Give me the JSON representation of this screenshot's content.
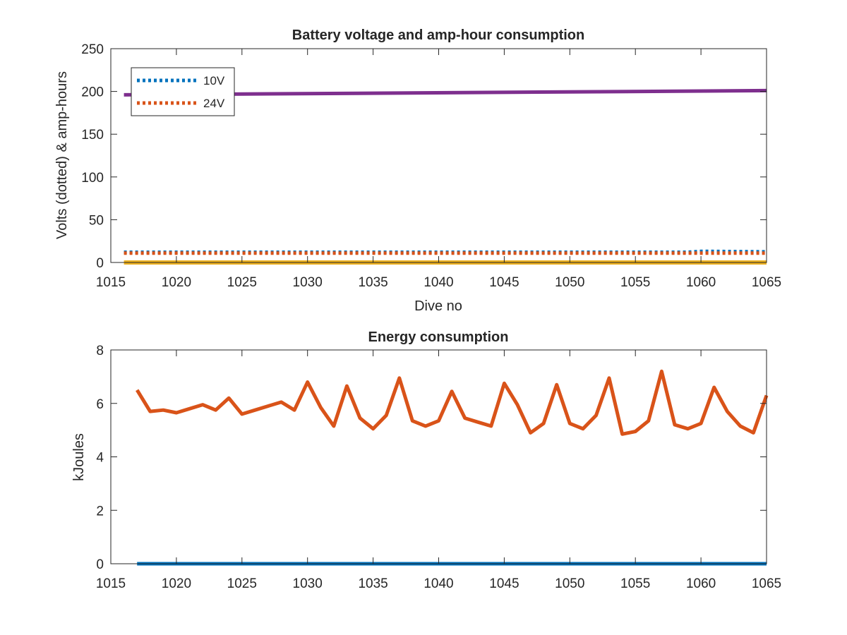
{
  "colors": {
    "blue": "#0072bd",
    "orange": "#d95319",
    "yellow": "#edb120",
    "purple": "#7e2f8e",
    "axis": "#262626"
  },
  "chart_data": [
    {
      "type": "line",
      "title": "Battery voltage and amp-hour consumption",
      "xlabel": "Dive no",
      "ylabel": "Volts (dotted) & amp-hours",
      "xlim": [
        1015,
        1065
      ],
      "ylim": [
        0,
        250
      ],
      "xticks": [
        1015,
        1020,
        1025,
        1030,
        1035,
        1040,
        1045,
        1050,
        1055,
        1060,
        1065
      ],
      "yticks": [
        0,
        50,
        100,
        150,
        200,
        250
      ],
      "grid": false,
      "legend_position": "top-left",
      "series": [
        {
          "name": "10V",
          "style": "dotted",
          "color": "#0072bd",
          "x": [
            1016,
            1059,
            1060,
            1065
          ],
          "y": [
            12,
            12,
            13,
            12.5
          ]
        },
        {
          "name": "24V",
          "style": "dotted",
          "color": "#d95319",
          "x": [
            1016,
            1065
          ],
          "y": [
            11,
            11
          ]
        },
        {
          "style": "solid",
          "color": "#edb120",
          "x": [
            1016,
            1065
          ],
          "y": [
            0,
            0
          ]
        },
        {
          "style": "solid",
          "color": "#7e2f8e",
          "x": [
            1016,
            1065
          ],
          "y": [
            196,
            201
          ]
        }
      ]
    },
    {
      "type": "line",
      "title": "Energy consumption",
      "xlabel": "",
      "ylabel": "kJoules",
      "xlim": [
        1015,
        1065
      ],
      "ylim": [
        0,
        8
      ],
      "xticks": [
        1015,
        1020,
        1025,
        1030,
        1035,
        1040,
        1045,
        1050,
        1055,
        1060,
        1065
      ],
      "yticks": [
        0,
        2,
        4,
        6,
        8
      ],
      "grid": false,
      "series": [
        {
          "style": "solid",
          "color": "#0072bd",
          "x": [
            1017,
            1065
          ],
          "y": [
            0,
            0
          ]
        },
        {
          "style": "solid",
          "color": "#d95319",
          "x": [
            1017,
            1018,
            1019,
            1020,
            1021,
            1022,
            1023,
            1024,
            1025,
            1026,
            1027,
            1028,
            1029,
            1030,
            1031,
            1032,
            1033,
            1034,
            1035,
            1036,
            1037,
            1038,
            1039,
            1040,
            1041,
            1042,
            1043,
            1044,
            1045,
            1046,
            1047,
            1048,
            1049,
            1050,
            1051,
            1052,
            1053,
            1054,
            1055,
            1056,
            1057,
            1058,
            1059,
            1060,
            1061,
            1062,
            1063,
            1064,
            1065
          ],
          "y": [
            6.5,
            5.7,
            5.75,
            5.65,
            5.8,
            5.95,
            5.75,
            6.2,
            5.6,
            5.75,
            5.9,
            6.05,
            5.75,
            6.8,
            5.85,
            5.15,
            6.65,
            5.45,
            5.05,
            5.55,
            6.95,
            5.35,
            5.15,
            5.35,
            6.45,
            5.45,
            5.3,
            5.15,
            6.75,
            5.95,
            4.9,
            5.25,
            6.7,
            5.25,
            5.05,
            5.55,
            6.95,
            4.85,
            4.95,
            5.35,
            7.2,
            5.2,
            5.05,
            5.25,
            6.6,
            5.7,
            5.15,
            4.9,
            6.3
          ]
        }
      ]
    }
  ]
}
